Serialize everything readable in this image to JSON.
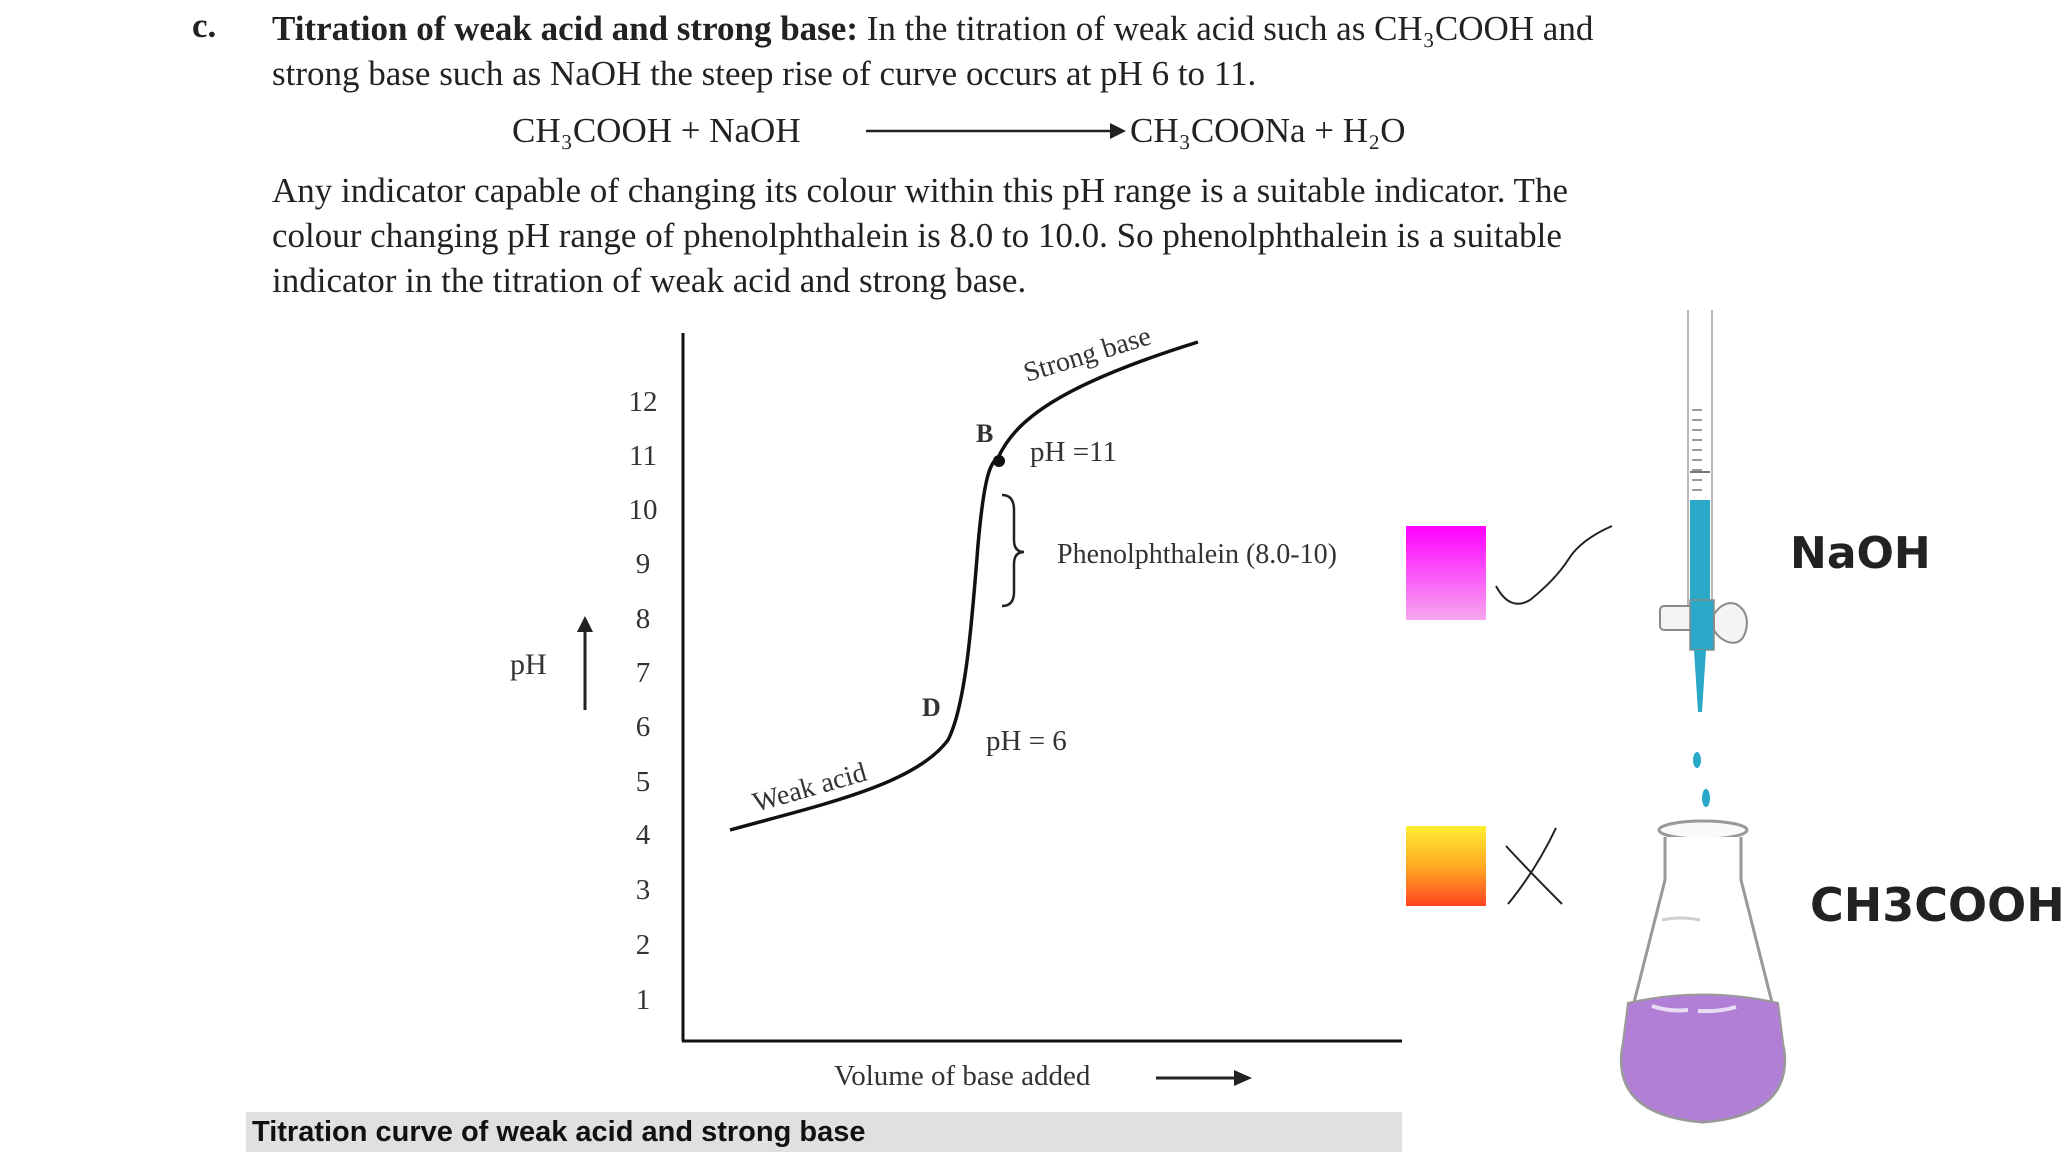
{
  "section": {
    "marker": "c.",
    "heading": "Titration of weak acid and strong base:",
    "intro_rest": "In the titration of weak acid such as CH₃COOH and",
    "intro_line2": "strong base such as NaOH the steep rise of curve occurs at pH 6 to 11.",
    "equation_left": "CH₃COOH + NaOH",
    "equation_right": "CH₃COONa + H₂O",
    "para2_line1": "Any indicator capable of changing its colour within this pH range is a suitable indicator. The",
    "para2_line2": "colour changing pH range of phenolphthalein is 8.0 to 10.0. So phenolphthalein is a suitable",
    "para2_line3": "indicator in the titration of weak acid and strong base."
  },
  "figure": {
    "y_axis_label": "pH",
    "x_axis_label": "Volume of base added",
    "y_ticks": [
      "1",
      "2",
      "3",
      "4",
      "5",
      "6",
      "7",
      "8",
      "9",
      "10",
      "11",
      "12"
    ],
    "curve_label_start": "Weak acid",
    "curve_label_end": "Strong base",
    "point_b": "B",
    "point_d": "D",
    "ph_high_label": "pH =11",
    "ph_low_label": "pH = 6",
    "indicator_label": "Phenolphthalein (8.0-10)",
    "caption": "Titration curve of weak acid and strong base"
  },
  "annotations": {
    "burette_label": "NaOH",
    "flask_label": "CH3COOH",
    "check_colors": [
      "#ff00ff",
      "#f6a8f0"
    ],
    "cross_colors": [
      "#ffee33",
      "#ff4422"
    ],
    "titrant_color": "#2aa8c8",
    "flask_liquid_color": "#b27fd6"
  }
}
